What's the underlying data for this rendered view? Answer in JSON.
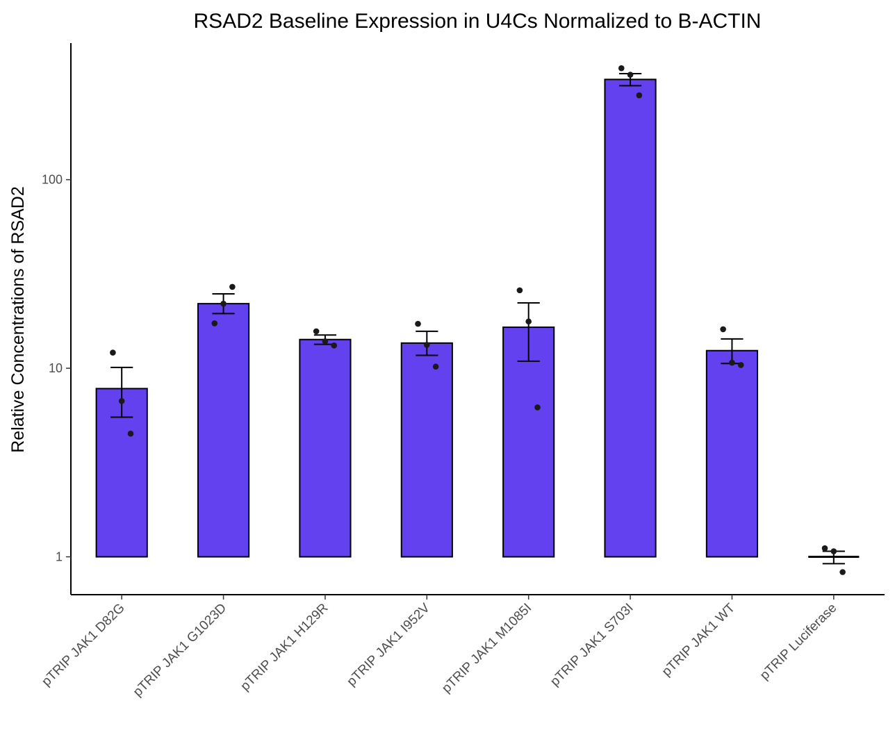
{
  "chart_data": {
    "type": "bar",
    "title": "RSAD2 Baseline Expression in U4Cs Normalized to B-ACTIN",
    "xlabel": "",
    "ylabel": "Relative Concentrations of RSAD2",
    "yscale": "log10",
    "ylim": [
      0.63,
      530
    ],
    "yticks": [
      1,
      10,
      100
    ],
    "yticklabels": [
      "1",
      "10",
      "100"
    ],
    "bar_color": "#6441EE",
    "bar_base": 1,
    "grid": false,
    "legend": "none",
    "categories": [
      "pTRIP JAK1 D82G",
      "pTRIP JAK1 G1023D",
      "pTRIP JAK1 H129R",
      "pTRIP JAK1 I952V",
      "pTRIP JAK1 M1085I",
      "pTRIP JAK1 S703I",
      "pTRIP JAK1 WT",
      "pTRIP Luciferase"
    ],
    "values": [
      7.8,
      22,
      14.2,
      13.6,
      16.5,
      340,
      12.4,
      1.0
    ],
    "error_low": [
      5.5,
      19.5,
      13.4,
      11.7,
      10.9,
      315,
      10.6,
      0.92
    ],
    "error_high": [
      10.1,
      24.8,
      15.0,
      15.7,
      22.2,
      365,
      14.3,
      1.07
    ],
    "points": [
      [
        12.1,
        6.7,
        4.5
      ],
      [
        17.3,
        22.0,
        27.0
      ],
      [
        15.7,
        13.9,
        13.2
      ],
      [
        17.2,
        13.3,
        10.2
      ],
      [
        25.9,
        17.7,
        6.2
      ],
      [
        390,
        360,
        280
      ],
      [
        16.1,
        10.7,
        10.4
      ],
      [
        1.11,
        1.07,
        0.83
      ]
    ]
  }
}
